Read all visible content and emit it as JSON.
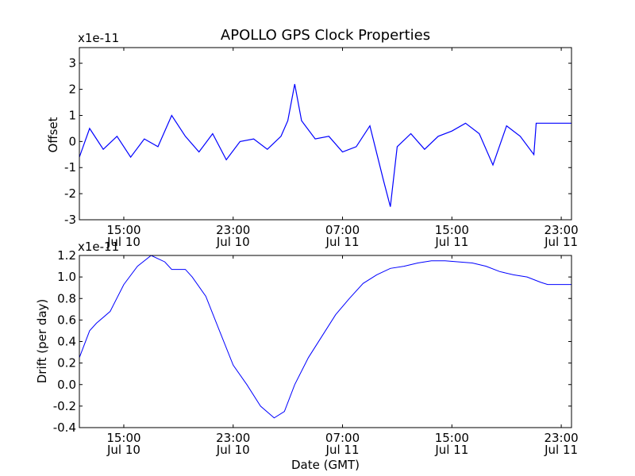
{
  "chart_data": [
    {
      "type": "line",
      "title": "APOLLO GPS Clock Properties",
      "xlabel": "",
      "ylabel": "Offset",
      "exponent_label": "x1e-11",
      "ylim": [
        -3,
        3.6
      ],
      "yticks": [
        "-3",
        "-2",
        "-1",
        "0",
        "1",
        "2",
        "3"
      ],
      "xlim": [
        "2011-07-10 11:45",
        "2011-07-11 23:45"
      ],
      "xticks": [
        {
          "time": "15:00",
          "date": "Jul 10"
        },
        {
          "time": "23:00",
          "date": "Jul 10"
        },
        {
          "time": "07:00",
          "date": "Jul 11"
        },
        {
          "time": "15:00",
          "date": "Jul 11"
        },
        {
          "time": "23:00",
          "date": "Jul 11"
        }
      ],
      "color": "#0000ff",
      "series": [
        {
          "x": [
            "2011-07-10 11:45",
            "2011-07-10 12:30",
            "2011-07-10 13:30",
            "2011-07-10 14:30",
            "2011-07-10 15:30",
            "2011-07-10 16:30",
            "2011-07-10 17:30",
            "2011-07-10 18:30",
            "2011-07-10 19:30",
            "2011-07-10 20:30",
            "2011-07-10 21:30",
            "2011-07-10 22:30",
            "2011-07-10 23:30",
            "2011-07-11 00:30",
            "2011-07-11 01:30",
            "2011-07-11 02:30",
            "2011-07-11 03:00",
            "2011-07-11 03:30",
            "2011-07-11 04:00",
            "2011-07-11 05:00",
            "2011-07-11 06:00",
            "2011-07-11 07:00",
            "2011-07-11 08:00",
            "2011-07-11 09:00",
            "2011-07-11 10:00",
            "2011-07-11 10:30",
            "2011-07-11 11:00",
            "2011-07-11 12:00",
            "2011-07-11 13:00",
            "2011-07-11 14:00",
            "2011-07-11 15:00",
            "2011-07-11 16:00",
            "2011-07-11 17:00",
            "2011-07-11 18:00",
            "2011-07-11 19:00",
            "2011-07-11 20:00",
            "2011-07-11 21:00",
            "2011-07-11 21:10",
            "2011-07-11 23:45"
          ],
          "y": [
            -0.6,
            0.5,
            -0.3,
            0.2,
            -0.6,
            0.1,
            -0.2,
            1.0,
            0.2,
            -0.4,
            0.3,
            -0.7,
            0.0,
            0.1,
            -0.3,
            0.2,
            0.8,
            2.2,
            0.8,
            0.1,
            0.2,
            -0.4,
            -0.2,
            0.6,
            -1.5,
            -2.5,
            -0.2,
            0.3,
            -0.3,
            0.2,
            0.4,
            0.7,
            0.3,
            -0.9,
            0.6,
            0.2,
            -0.5,
            0.7,
            0.7
          ]
        }
      ]
    },
    {
      "type": "line",
      "title": "",
      "xlabel": "Date (GMT)",
      "ylabel": "Drift (per day)",
      "exponent_label": "x1e-11",
      "ylim": [
        -0.4,
        1.2
      ],
      "yticks": [
        "-0.4",
        "-0.2",
        "0.0",
        "0.2",
        "0.4",
        "0.6",
        "0.8",
        "1.0",
        "1.2"
      ],
      "xlim": [
        "2011-07-10 11:45",
        "2011-07-11 23:45"
      ],
      "xticks": [
        {
          "time": "15:00",
          "date": "Jul 10"
        },
        {
          "time": "23:00",
          "date": "Jul 10"
        },
        {
          "time": "07:00",
          "date": "Jul 11"
        },
        {
          "time": "15:00",
          "date": "Jul 11"
        },
        {
          "time": "23:00",
          "date": "Jul 11"
        }
      ],
      "color": "#0000ff",
      "series": [
        {
          "x": [
            "2011-07-10 11:45",
            "2011-07-10 12:30",
            "2011-07-10 13:00",
            "2011-07-10 14:00",
            "2011-07-10 15:00",
            "2011-07-10 16:00",
            "2011-07-10 17:00",
            "2011-07-10 18:00",
            "2011-07-10 18:30",
            "2011-07-10 19:30",
            "2011-07-10 20:00",
            "2011-07-10 21:00",
            "2011-07-10 22:00",
            "2011-07-10 23:00",
            "2011-07-11 00:00",
            "2011-07-11 01:00",
            "2011-07-11 02:00",
            "2011-07-11 02:45",
            "2011-07-11 03:30",
            "2011-07-11 04:30",
            "2011-07-11 05:30",
            "2011-07-11 06:30",
            "2011-07-11 07:30",
            "2011-07-11 08:30",
            "2011-07-11 09:30",
            "2011-07-11 10:30",
            "2011-07-11 11:30",
            "2011-07-11 12:30",
            "2011-07-11 13:30",
            "2011-07-11 14:30",
            "2011-07-11 15:30",
            "2011-07-11 16:30",
            "2011-07-11 17:30",
            "2011-07-11 18:30",
            "2011-07-11 19:30",
            "2011-07-11 20:30",
            "2011-07-11 21:30",
            "2011-07-11 22:00",
            "2011-07-11 23:45"
          ],
          "y": [
            0.25,
            0.5,
            0.57,
            0.68,
            0.93,
            1.1,
            1.2,
            1.14,
            1.07,
            1.07,
            1.0,
            0.82,
            0.5,
            0.18,
            0.0,
            -0.2,
            -0.31,
            -0.25,
            0.0,
            0.25,
            0.45,
            0.65,
            0.8,
            0.94,
            1.02,
            1.08,
            1.1,
            1.13,
            1.15,
            1.15,
            1.14,
            1.13,
            1.1,
            1.05,
            1.02,
            1.0,
            0.95,
            0.93,
            0.93
          ]
        }
      ]
    }
  ]
}
